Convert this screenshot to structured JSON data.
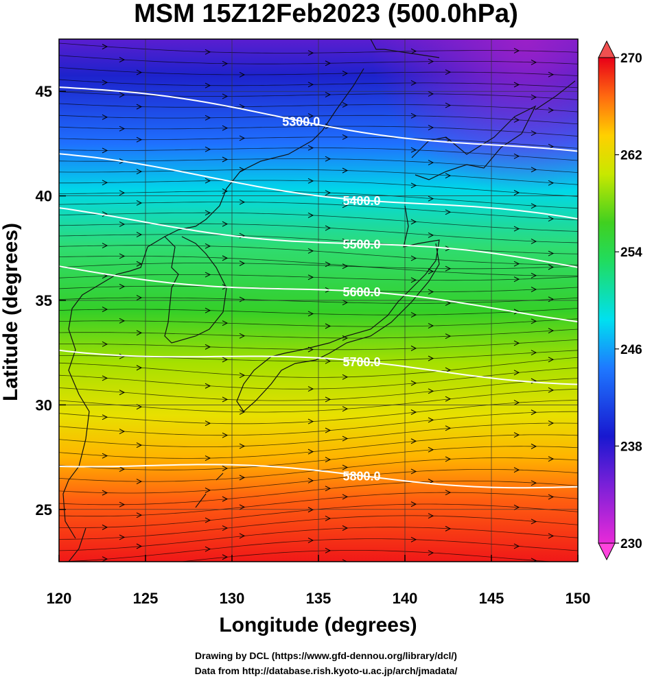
{
  "title": "MSM 15Z12Feb2023 (500.0hPa)",
  "xlabel": "Longitude (degrees)",
  "ylabel": "Latitude  (degrees)",
  "credits": {
    "line1": "Drawing by DCL (https://www.gfd-dennou.org/library/dcl/)",
    "line2": "Data from http://database.rish.kyoto-u.ac.jp/arch/jmadata/"
  },
  "map": {
    "lon_range": [
      120,
      150
    ],
    "lat_range": [
      22.5,
      47.5
    ],
    "x_ticks": [
      120,
      125,
      130,
      135,
      140,
      145,
      150
    ],
    "y_ticks": [
      25,
      30,
      35,
      40,
      45
    ],
    "gridlines": true
  },
  "colorbar": {
    "range": [
      230,
      270
    ],
    "tick_labels": [
      "230",
      "238",
      "246",
      "254",
      "262",
      "270"
    ],
    "colors": [
      "#ff33cc",
      "#8a2be2",
      "#1a1acc",
      "#1e64ff",
      "#00d8f0",
      "#2fe07a",
      "#3ccc20",
      "#9fe000",
      "#e6e600",
      "#ffb000",
      "#ff5010",
      "#e8001a"
    ]
  },
  "contours": [
    {
      "label": "5300.0"
    },
    {
      "label": "5400.0"
    },
    {
      "label": "5500.0"
    },
    {
      "label": "5600.0"
    },
    {
      "label": "5700.0"
    },
    {
      "label": "5800.0"
    }
  ]
}
